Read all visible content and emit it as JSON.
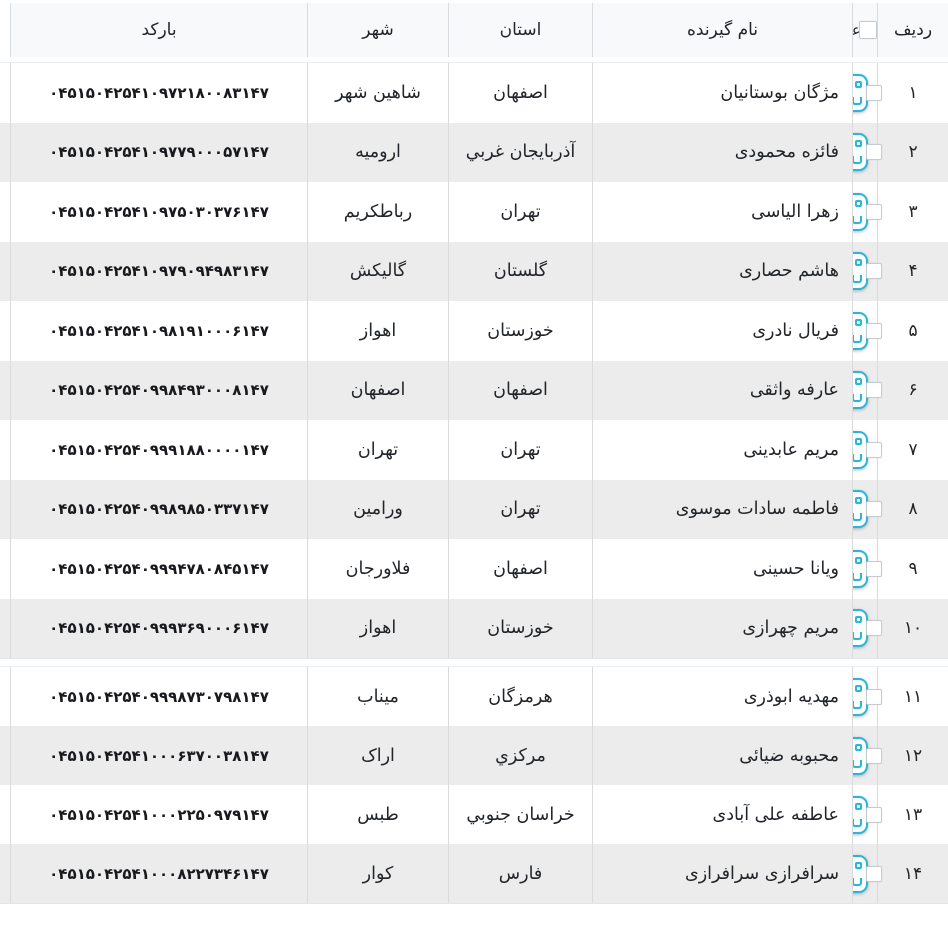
{
  "colors": {
    "accent_cyan": "#2bb6d8",
    "header_bg": "#f8f9fa",
    "row_alt_bg": "#ececec",
    "border": "#d9dcde",
    "text": "#212529"
  },
  "table": {
    "headers": {
      "radif": "ردیف",
      "actions_clipped": "عد",
      "name": "نام گیرنده",
      "province": "استان",
      "city": "شهر",
      "barcode": "بارکد"
    },
    "rows": [
      {
        "radif": "۱",
        "name": "مژگان بوستانیان",
        "province": "اصفهان",
        "city": "شاهین شهر",
        "barcode": "۰۴۵۱۵۰۴۲۵۴۱۰۹۷۲۱۸۰۰۸۳۱۴۷"
      },
      {
        "radif": "۲",
        "name": "فائزه محمودی",
        "province": "آذربايجان غربي",
        "city": "ارومیه",
        "barcode": "۰۴۵۱۵۰۴۲۵۴۱۰۹۷۷۹۰۰۰۵۷۱۴۷"
      },
      {
        "radif": "۳",
        "name": "زهرا الیاسی",
        "province": "تهران",
        "city": "رباطکریم",
        "barcode": "۰۴۵۱۵۰۴۲۵۴۱۰۹۷۵۰۳۰۳۷۶۱۴۷"
      },
      {
        "radif": "۴",
        "name": "هاشم حصاری",
        "province": "گلستان",
        "city": "گالیکش",
        "barcode": "۰۴۵۱۵۰۴۲۵۴۱۰۹۷۹۰۹۴۹۸۳۱۴۷"
      },
      {
        "radif": "۵",
        "name": "فریال نادری",
        "province": "خوزستان",
        "city": "اهواز",
        "barcode": "۰۴۵۱۵۰۴۲۵۴۱۰۹۸۱۹۱۰۰۰۶۱۴۷"
      },
      {
        "radif": "۶",
        "name": "عارفه واثقی",
        "province": "اصفهان",
        "city": "اصفهان",
        "barcode": "۰۴۵۱۵۰۴۲۵۴۰۹۹۸۴۹۳۰۰۰۸۱۴۷"
      },
      {
        "radif": "۷",
        "name": "مریم عابدینی",
        "province": "تهران",
        "city": "تهران",
        "barcode": "۰۴۵۱۵۰۴۲۵۴۰۹۹۹۱۸۸۰۰۰۰۱۴۷"
      },
      {
        "radif": "۸",
        "name": "فاطمه سادات موسوی",
        "province": "تهران",
        "city": "ورامین",
        "barcode": "۰۴۵۱۵۰۴۲۵۴۰۹۹۸۹۸۵۰۳۳۷۱۴۷"
      },
      {
        "radif": "۹",
        "name": "ویانا حسینی",
        "province": "اصفهان",
        "city": "فلاورجان",
        "barcode": "۰۴۵۱۵۰۴۲۵۴۰۹۹۹۴۷۸۰۸۴۵۱۴۷"
      },
      {
        "radif": "۱۰",
        "name": "مریم چهرازی",
        "province": "خوزستان",
        "city": "اهواز",
        "barcode": "۰۴۵۱۵۰۴۲۵۴۰۹۹۹۳۶۹۰۰۰۶۱۴۷"
      },
      {
        "radif": "۱۱",
        "name": "مهدیه ابوذری",
        "province": "هرمزگان",
        "city": "میناب",
        "barcode": "۰۴۵۱۵۰۴۲۵۴۰۹۹۹۸۷۳۰۷۹۸۱۴۷"
      },
      {
        "radif": "۱۲",
        "name": "محبوبه ضیائی",
        "province": "مركزي",
        "city": "اراک",
        "barcode": "۰۴۵۱۵۰۴۲۵۴۱۰۰۰۶۳۷۰۰۳۸۱۴۷"
      },
      {
        "radif": "۱۳",
        "name": "عاطفه علی آبادی",
        "province": "خراسان جنوبي",
        "city": "طبس",
        "barcode": "۰۴۵۱۵۰۴۲۵۴۱۰۰۰۲۲۵۰۹۷۹۱۴۷"
      },
      {
        "radif": "۱۴",
        "name": "سرافرازی سرافرازی",
        "province": "فارس",
        "city": "کوار",
        "barcode": "۰۴۵۱۵۰۴۲۵۴۱۰۰۰۸۲۲۷۳۴۶۱۴۷"
      }
    ]
  }
}
